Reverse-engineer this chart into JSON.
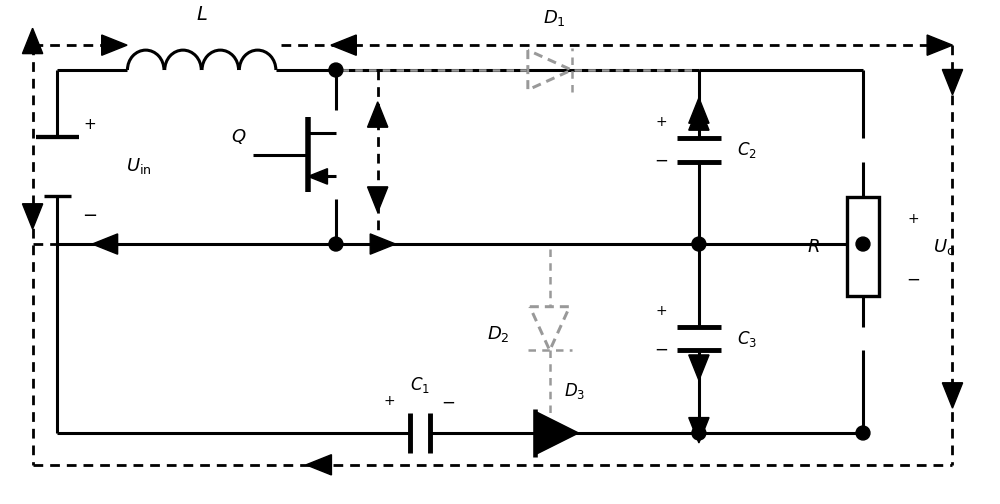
{
  "background": "#ffffff",
  "sc": "#000000",
  "gc": "#999999",
  "figsize": [
    10.0,
    5.04
  ],
  "dpi": 100,
  "lw": 2.2,
  "lwd": 2.0,
  "lwg": 1.8
}
